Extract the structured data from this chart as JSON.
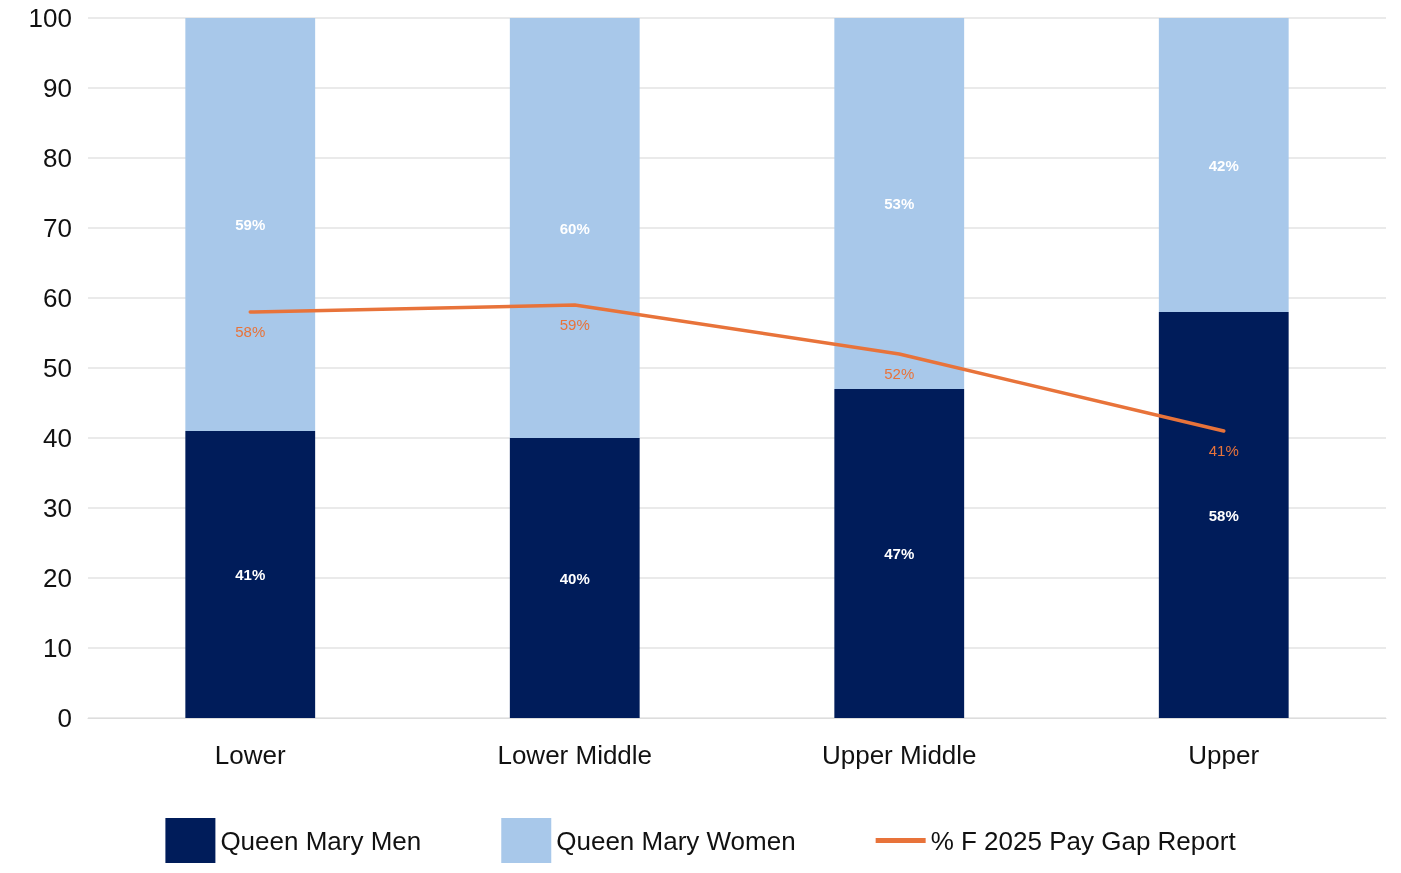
{
  "chart_data": {
    "type": "bar",
    "stacked": true,
    "categories": [
      "Lower",
      "Lower Middle",
      "Upper Middle",
      "Upper"
    ],
    "series": [
      {
        "name": "Queen Mary Men",
        "color": "#001c5a",
        "values": [
          41,
          40,
          47,
          58
        ],
        "value_labels": [
          "41%",
          "40%",
          "47%",
          "58%"
        ]
      },
      {
        "name": "Queen Mary Women",
        "color": "#a8c8ea",
        "values": [
          59,
          60,
          53,
          42
        ],
        "value_labels": [
          "59%",
          "60%",
          "53%",
          "42%"
        ]
      },
      {
        "name": "% F 2025 Pay Gap Report",
        "type": "line",
        "color": "#e8733a",
        "values": [
          58,
          59,
          52,
          41
        ],
        "value_labels": [
          "58%",
          "59%",
          "52%",
          "41%"
        ]
      }
    ],
    "ylim": [
      0,
      100
    ],
    "yticks": [
      0,
      10,
      20,
      30,
      40,
      50,
      60,
      70,
      80,
      90,
      100
    ],
    "grid": "y",
    "legend": "bottom",
    "marker": "none"
  }
}
